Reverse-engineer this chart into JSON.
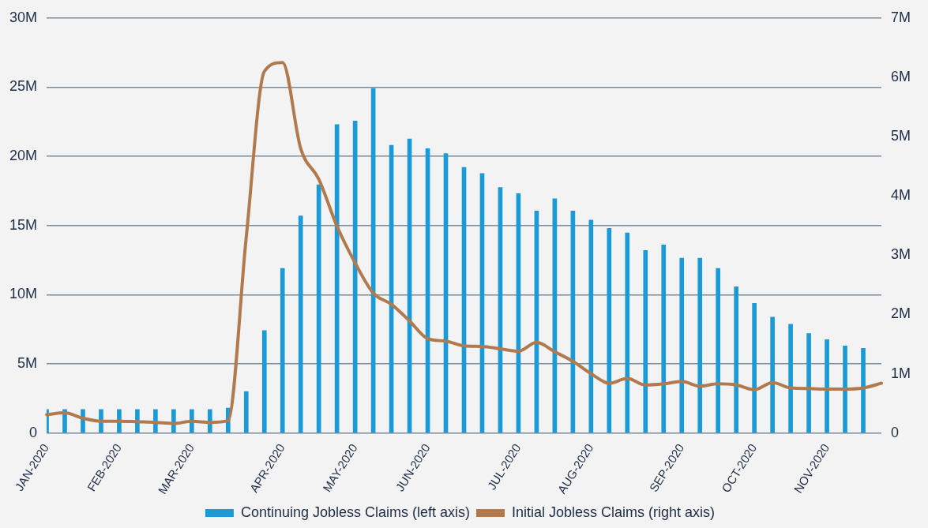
{
  "chart_data": {
    "type": "bar",
    "categories": [
      "JAN-2020",
      null,
      null,
      null,
      "FEB-2020",
      null,
      null,
      null,
      "MAR-2020",
      null,
      null,
      null,
      null,
      "APR-2020",
      null,
      null,
      null,
      "MAY-2020",
      null,
      null,
      null,
      "JUN-2020",
      null,
      null,
      null,
      null,
      "JUL-2020",
      null,
      null,
      null,
      "AUG-2020",
      null,
      null,
      null,
      null,
      "SEP-2020",
      null,
      null,
      null,
      "OCT-2020",
      null,
      null,
      null,
      "NOV-2020",
      null,
      null,
      null
    ],
    "series": [
      {
        "name": "Continuing Jobless Claims (left axis)",
        "color": "#1a9ad6",
        "values": [
          1700000,
          1700000,
          1700000,
          1700000,
          1700000,
          1700000,
          1700000,
          1700000,
          1700000,
          1700000,
          1800000,
          3000000,
          7400000,
          11900000,
          15700000,
          17950000,
          22300000,
          22550000,
          24900000,
          20800000,
          21250000,
          20550000,
          20200000,
          19200000,
          18760000,
          17750000,
          17300000,
          16050000,
          16930000,
          16050000,
          15400000,
          14800000,
          14470000,
          13200000,
          13600000,
          12640000,
          12640000,
          11900000,
          10570000,
          9380000,
          8370000,
          7860000,
          7190000,
          6750000,
          6300000,
          6130000,
          null
        ]
      },
      {
        "name": "Initial Jobless Claims (right axis)",
        "type": "line",
        "axis": "y2",
        "color": "#b07a4e",
        "values": [
          310000,
          340000,
          250000,
          200000,
          200000,
          190000,
          180000,
          160000,
          200000,
          180000,
          210000,
          3300000,
          6100000,
          6250000,
          4800000,
          4280000,
          3490000,
          2870000,
          2360000,
          2170000,
          1890000,
          1590000,
          1550000,
          1470000,
          1460000,
          1420000,
          1380000,
          1530000,
          1370000,
          1210000,
          1000000,
          840000,
          920000,
          810000,
          830000,
          870000,
          790000,
          830000,
          810000,
          730000,
          850000,
          760000,
          750000,
          740000,
          740000,
          760000,
          840000
        ]
      }
    ],
    "ylim": [
      0,
      30000000
    ],
    "yticks": [
      0,
      {
        "value": 5000000,
        "label": "5M"
      },
      {
        "value": 10000000,
        "label": "10M"
      },
      {
        "value": 15000000,
        "label": "15M"
      },
      {
        "value": 20000000,
        "label": "20M"
      },
      {
        "value": 25000000,
        "label": "25M"
      },
      {
        "value": 30000000,
        "label": "30M"
      }
    ],
    "y2lim": [
      0,
      7000000
    ],
    "y2ticks": [
      0,
      {
        "value": 1000000,
        "label": "1M"
      },
      {
        "value": 2000000,
        "label": "2M"
      },
      {
        "value": 3000000,
        "label": "3M"
      },
      {
        "value": 4000000,
        "label": "4M"
      },
      {
        "value": 5000000,
        "label": "5M"
      },
      {
        "value": 6000000,
        "label": "6M"
      },
      {
        "value": 7000000,
        "label": "7M"
      }
    ],
    "grid": "y",
    "legend": "bottom",
    "marker": "none",
    "line_style": "solid"
  }
}
